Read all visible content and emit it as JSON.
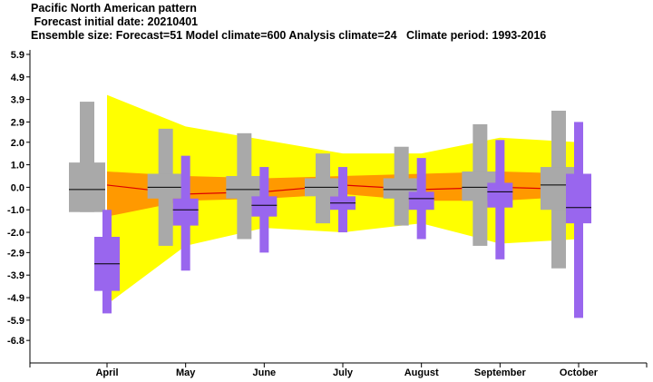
{
  "header": {
    "title": "Pacific North American pattern",
    "forecast_date": " Forecast initial date: 20210401",
    "ensemble": "Ensemble size: Forecast=51 Model climate=600 Analysis climate=24   Climate period: 1993-2016"
  },
  "colors": {
    "climate_outer_band": "#ffff00",
    "climate_inner_band": "#ff9900",
    "climate_median_line": "#dd0000",
    "model_climate_box": "#a9a9a9",
    "forecast_box": "#9966ee",
    "median_tick": "#000000"
  },
  "chart_data": {
    "type": "box",
    "title": "Pacific North American pattern",
    "categories": [
      "April",
      "May",
      "June",
      "July",
      "August",
      "September",
      "October"
    ],
    "y_ticks": [
      "5.9",
      "4.9",
      "3.9",
      "2.9",
      "2.0",
      "1.0",
      "0.0",
      "-1.0",
      "-2.0",
      "-2.9",
      "-3.9",
      "-4.9",
      "-5.9",
      "-6.8"
    ],
    "ylim": [
      -7.8,
      6.1
    ],
    "grid": false,
    "analysis_climate": {
      "outer_low": [
        -5.2,
        -2.6,
        -1.8,
        -2.0,
        -1.6,
        -2.5,
        -2.3
      ],
      "outer_high": [
        4.1,
        2.7,
        2.1,
        1.5,
        1.5,
        2.2,
        2.0
      ],
      "inner_low": [
        -1.3,
        -0.6,
        -0.5,
        -0.3,
        -0.6,
        -0.6,
        -0.4
      ],
      "inner_high": [
        0.7,
        0.5,
        0.4,
        0.5,
        0.6,
        0.7,
        0.6
      ],
      "median": [
        0.1,
        -0.3,
        -0.2,
        0.1,
        -0.1,
        0.0,
        -0.1
      ]
    },
    "model_climate": {
      "min": [
        -1.1,
        -2.6,
        -2.3,
        -1.6,
        -1.7,
        -2.6,
        -3.6
      ],
      "q_low": [
        -1.1,
        -0.5,
        -0.5,
        -0.4,
        -0.5,
        -0.6,
        -1.0
      ],
      "median": [
        -0.1,
        0.0,
        -0.1,
        0.0,
        -0.1,
        0.0,
        0.1
      ],
      "q_high": [
        1.1,
        0.6,
        0.5,
        0.4,
        0.4,
        0.7,
        0.9
      ],
      "max": [
        3.8,
        2.6,
        2.4,
        1.5,
        1.8,
        2.8,
        3.4
      ]
    },
    "forecast": {
      "min": [
        -5.6,
        -3.7,
        -2.9,
        -2.0,
        -2.3,
        -3.2,
        -5.8
      ],
      "q_low": [
        -4.6,
        -1.7,
        -1.3,
        -1.0,
        -1.0,
        -0.9,
        -1.6
      ],
      "median": [
        -3.4,
        -1.0,
        -0.8,
        -0.7,
        -0.5,
        -0.2,
        -0.9
      ],
      "q_high": [
        -2.2,
        -0.5,
        -0.4,
        -0.4,
        -0.2,
        0.2,
        0.6
      ],
      "max": [
        -1.0,
        1.4,
        0.9,
        0.9,
        1.3,
        2.1,
        2.9
      ]
    }
  }
}
